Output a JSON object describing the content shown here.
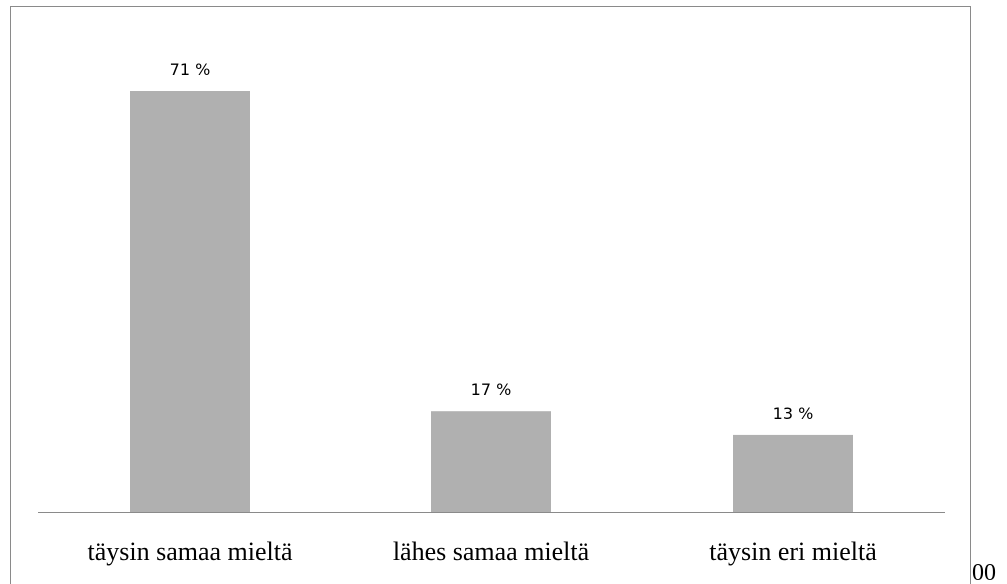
{
  "chart_data": {
    "type": "bar",
    "categories": [
      "täysin samaa mieltä",
      "lähes samaa mieltä",
      "täysin eri mieltä"
    ],
    "values": [
      71,
      17,
      13
    ],
    "value_labels": [
      "71 %",
      "17 %",
      "13 %"
    ],
    "color": "#b0b0b0",
    "annotations": [
      "00"
    ]
  }
}
